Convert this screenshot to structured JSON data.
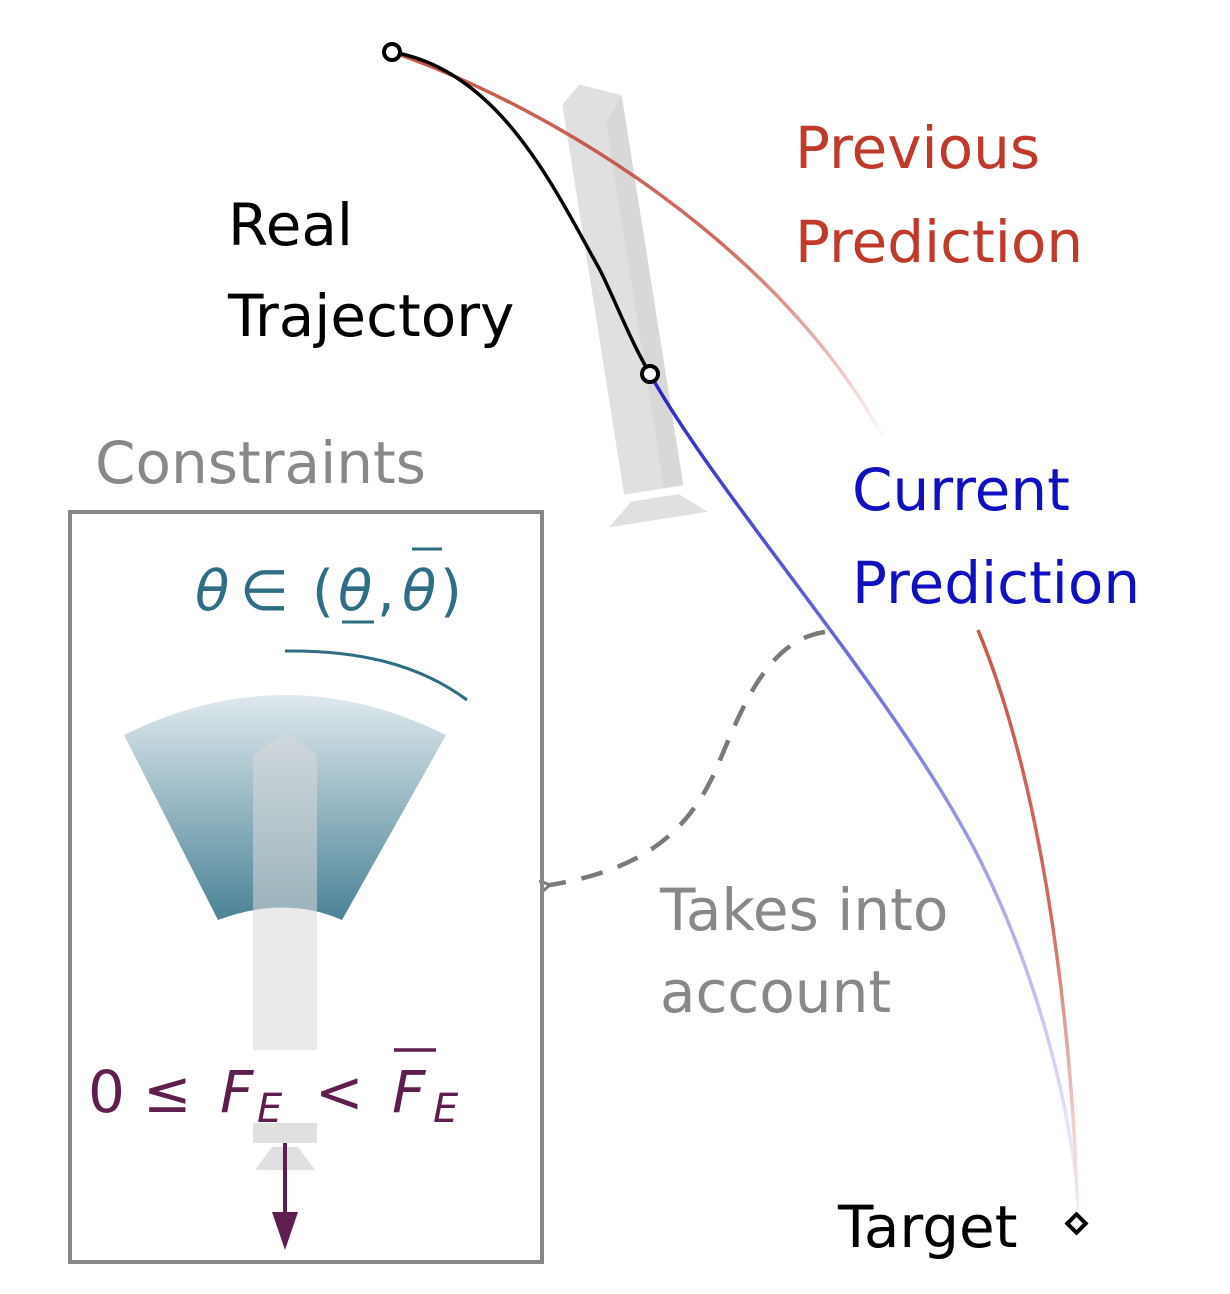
{
  "labels": {
    "real_trajectory": [
      "Real",
      "Trajectory"
    ],
    "previous_prediction": [
      "Previous",
      "Prediction"
    ],
    "current_prediction": [
      "Current",
      "Prediction"
    ],
    "constraints": "Constraints",
    "takes_into_account": [
      "Takes into",
      "account"
    ],
    "target": "Target"
  },
  "math": {
    "angle_constraint": {
      "symbol": "θ",
      "in": "∈",
      "open": "(",
      "lower": "θ",
      "sep": ",",
      "upper": "θ",
      "close": ")"
    },
    "thrust_constraint": {
      "zero": "0",
      "leq": "≤",
      "F": "F",
      "sub": "E",
      "lt": "<",
      "Fbar": "F",
      "sub2": "E"
    }
  },
  "colors": {
    "real": "#000000",
    "previous": "#c0392b",
    "current": "#1010c0",
    "constraint_text": "#888888",
    "angle": "#2e6d84",
    "thrust": "#5e1f4f",
    "rocket": "#e0e0e0"
  }
}
